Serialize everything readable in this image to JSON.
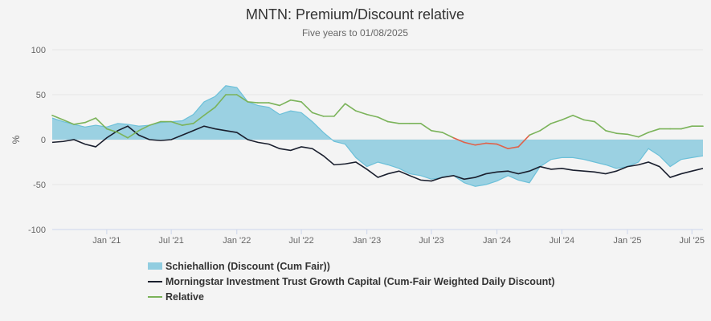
{
  "chart_data": {
    "type": "line",
    "title": "MNTN: Premium/Discount relative",
    "subtitle": "Five years to 01/08/2025",
    "ylabel": "%",
    "xlabel": "",
    "ylim": [
      -100,
      100
    ],
    "xlim": [
      "2020-08-01",
      "2025-08-01"
    ],
    "y_ticks": [
      "100",
      "50",
      "0",
      "-50",
      "-100"
    ],
    "x_ticks": [
      "Jan '21",
      "Jul '21",
      "Jan '22",
      "Jul '22",
      "Jan '23",
      "Jul '23",
      "Jan '24",
      "Jul '24",
      "Jan '25",
      "Jul '25"
    ],
    "grid": true,
    "legend_position": "bottom",
    "colors": {
      "area_fill": "#91cde0",
      "area_line": "#6cc0d9",
      "discount": "#1a1f2e",
      "relative": "#7bb35a",
      "relative_negative": "#e0624a"
    },
    "series": [
      {
        "name": "Schiehallion (Discount (Cum Fair))",
        "kind": "area",
        "x": [
          "2020-08-01",
          "2020-09-01",
          "2020-10-01",
          "2020-11-01",
          "2020-12-01",
          "2021-01-01",
          "2021-02-01",
          "2021-03-01",
          "2021-04-01",
          "2021-05-01",
          "2021-06-01",
          "2021-07-01",
          "2021-08-01",
          "2021-09-01",
          "2021-10-01",
          "2021-11-01",
          "2021-12-01",
          "2022-01-01",
          "2022-02-01",
          "2022-03-01",
          "2022-04-01",
          "2022-05-01",
          "2022-06-01",
          "2022-07-01",
          "2022-08-01",
          "2022-09-01",
          "2022-10-01",
          "2022-11-01",
          "2022-12-01",
          "2023-01-01",
          "2023-02-01",
          "2023-03-01",
          "2023-04-01",
          "2023-05-01",
          "2023-06-01",
          "2023-07-01",
          "2023-08-01",
          "2023-09-01",
          "2023-10-01",
          "2023-11-01",
          "2023-12-01",
          "2024-01-01",
          "2024-02-01",
          "2024-03-01",
          "2024-04-01",
          "2024-05-01",
          "2024-06-01",
          "2024-07-01",
          "2024-08-01",
          "2024-09-01",
          "2024-10-01",
          "2024-11-01",
          "2024-12-01",
          "2025-01-01",
          "2025-02-01",
          "2025-03-01",
          "2025-04-01",
          "2025-05-01",
          "2025-06-01",
          "2025-07-01",
          "2025-08-01"
        ],
        "values": [
          24,
          20,
          17,
          14,
          16,
          14,
          18,
          17,
          15,
          16,
          19,
          20,
          21,
          28,
          42,
          48,
          60,
          58,
          42,
          38,
          36,
          28,
          32,
          30,
          20,
          8,
          -2,
          -5,
          -20,
          -30,
          -25,
          -28,
          -32,
          -38,
          -40,
          -44,
          -42,
          -40,
          -48,
          -52,
          -50,
          -46,
          -40,
          -45,
          -48,
          -30,
          -22,
          -20,
          -20,
          -22,
          -25,
          -28,
          -32,
          -30,
          -25,
          -10,
          -18,
          -30,
          -22,
          -20,
          -18
        ]
      },
      {
        "name": "Morningstar Investment Trust Growth Capital (Cum-Fair Weighted Daily Discount)",
        "kind": "line",
        "x": [
          "2020-08-01",
          "2020-09-01",
          "2020-10-01",
          "2020-11-01",
          "2020-12-01",
          "2021-01-01",
          "2021-02-01",
          "2021-03-01",
          "2021-04-01",
          "2021-05-01",
          "2021-06-01",
          "2021-07-01",
          "2021-08-01",
          "2021-09-01",
          "2021-10-01",
          "2021-11-01",
          "2021-12-01",
          "2022-01-01",
          "2022-02-01",
          "2022-03-01",
          "2022-04-01",
          "2022-05-01",
          "2022-06-01",
          "2022-07-01",
          "2022-08-01",
          "2022-09-01",
          "2022-10-01",
          "2022-11-01",
          "2022-12-01",
          "2023-01-01",
          "2023-02-01",
          "2023-03-01",
          "2023-04-01",
          "2023-05-01",
          "2023-06-01",
          "2023-07-01",
          "2023-08-01",
          "2023-09-01",
          "2023-10-01",
          "2023-11-01",
          "2023-12-01",
          "2024-01-01",
          "2024-02-01",
          "2024-03-01",
          "2024-04-01",
          "2024-05-01",
          "2024-06-01",
          "2024-07-01",
          "2024-08-01",
          "2024-09-01",
          "2024-10-01",
          "2024-11-01",
          "2024-12-01",
          "2025-01-01",
          "2025-02-01",
          "2025-03-01",
          "2025-04-01",
          "2025-05-01",
          "2025-06-01",
          "2025-07-01",
          "2025-08-01"
        ],
        "values": [
          -3,
          -2,
          0,
          -5,
          -8,
          2,
          10,
          15,
          5,
          0,
          -1,
          0,
          5,
          10,
          15,
          12,
          10,
          8,
          0,
          -3,
          -5,
          -10,
          -12,
          -8,
          -10,
          -18,
          -28,
          -27,
          -25,
          -33,
          -42,
          -38,
          -35,
          -40,
          -45,
          -46,
          -42,
          -40,
          -44,
          -42,
          -38,
          -36,
          -35,
          -38,
          -35,
          -30,
          -33,
          -32,
          -34,
          -35,
          -36,
          -38,
          -35,
          -30,
          -28,
          -25,
          -30,
          -42,
          -38,
          -35,
          -32
        ]
      },
      {
        "name": "Relative",
        "kind": "line",
        "x": [
          "2020-08-01",
          "2020-09-01",
          "2020-10-01",
          "2020-11-01",
          "2020-12-01",
          "2021-01-01",
          "2021-02-01",
          "2021-03-01",
          "2021-04-01",
          "2021-05-01",
          "2021-06-01",
          "2021-07-01",
          "2021-08-01",
          "2021-09-01",
          "2021-10-01",
          "2021-11-01",
          "2021-12-01",
          "2022-01-01",
          "2022-02-01",
          "2022-03-01",
          "2022-04-01",
          "2022-05-01",
          "2022-06-01",
          "2022-07-01",
          "2022-08-01",
          "2022-09-01",
          "2022-10-01",
          "2022-11-01",
          "2022-12-01",
          "2023-01-01",
          "2023-02-01",
          "2023-03-01",
          "2023-04-01",
          "2023-05-01",
          "2023-06-01",
          "2023-07-01",
          "2023-08-01",
          "2023-09-01",
          "2023-10-01",
          "2023-11-01",
          "2023-12-01",
          "2024-01-01",
          "2024-02-01",
          "2024-03-01",
          "2024-04-01",
          "2024-05-01",
          "2024-06-01",
          "2024-07-01",
          "2024-08-01",
          "2024-09-01",
          "2024-10-01",
          "2024-11-01",
          "2024-12-01",
          "2025-01-01",
          "2025-02-01",
          "2025-03-01",
          "2025-04-01",
          "2025-05-01",
          "2025-06-01",
          "2025-07-01",
          "2025-08-01"
        ],
        "values": [
          27,
          22,
          17,
          19,
          24,
          12,
          8,
          2,
          10,
          16,
          20,
          20,
          16,
          18,
          27,
          36,
          50,
          50,
          42,
          41,
          41,
          38,
          44,
          42,
          30,
          26,
          26,
          40,
          32,
          28,
          25,
          20,
          18,
          18,
          18,
          10,
          8,
          2,
          -3,
          -6,
          -4,
          -5,
          -10,
          -8,
          5,
          10,
          18,
          22,
          27,
          22,
          20,
          10,
          7,
          6,
          3,
          8,
          12,
          12,
          12,
          15,
          15
        ]
      }
    ]
  }
}
